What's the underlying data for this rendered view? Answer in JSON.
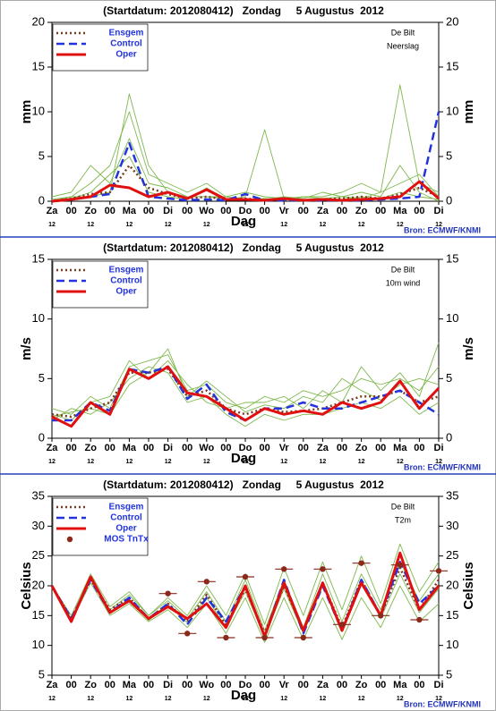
{
  "chart_data": [
    {
      "type": "line",
      "title": "(Startdatum: 2012080412)   Zondag     5 Augustus  2012",
      "location": "De Bilt",
      "variable": "Neerslag",
      "ylabel": "mm",
      "xlabel": "Dag",
      "source": "Bron: ECMWF/KNMI",
      "categories": [
        "Za",
        "00",
        "Zo",
        "00",
        "Ma",
        "00",
        "Di",
        "00",
        "Wo",
        "00",
        "Do",
        "00",
        "Vr",
        "00",
        "Za",
        "00",
        "Zo",
        "00",
        "Ma",
        "00",
        "Di"
      ],
      "x_sublabels": [
        "12",
        null,
        "12",
        null,
        "12",
        null,
        "12",
        null,
        "12",
        null,
        "12",
        null,
        "12",
        null,
        "12",
        null,
        "12",
        null,
        "12",
        null,
        "12"
      ],
      "ylim": [
        0,
        20
      ],
      "yticks": [
        0,
        5,
        10,
        15,
        20
      ],
      "series": [
        {
          "color": "#7fb84f",
          "dash": "thin",
          "values": [
            0,
            0.5,
            2,
            4,
            10,
            3,
            2,
            1,
            2,
            0.5,
            1,
            0.5,
            0.3,
            0.5,
            0.5,
            1,
            2,
            1,
            2,
            3,
            0.5
          ]
        },
        {
          "color": "#7fb84f",
          "dash": "thin",
          "values": [
            0.5,
            1,
            4,
            2,
            7,
            2,
            1.5,
            0.5,
            0.5,
            0.3,
            0.2,
            0.2,
            0.5,
            0.3,
            1,
            0.5,
            1,
            0.5,
            4,
            1,
            0
          ]
        },
        {
          "color": "#7fb84f",
          "dash": "thin",
          "values": [
            0,
            0.3,
            1,
            3,
            5,
            1,
            0.5,
            0.2,
            1.5,
            0.2,
            0.5,
            8,
            0.3,
            0.2,
            0.3,
            0.2,
            0.5,
            0.3,
            1,
            0.5,
            0.2
          ]
        },
        {
          "color": "#7fb84f",
          "dash": "thin",
          "values": [
            0.2,
            0.5,
            0.5,
            1,
            12,
            4,
            1,
            0.5,
            0.5,
            0.5,
            0.2,
            0.3,
            0.2,
            0.5,
            0.3,
            0.5,
            0.3,
            1,
            13,
            2,
            1
          ]
        },
        {
          "name": "Ensgem",
          "color": "#7a3b1e",
          "dash": "dotted",
          "values": [
            0,
            0.3,
            0.8,
            1,
            4,
            1.5,
            0.8,
            0.3,
            0.5,
            0.2,
            0.3,
            0.1,
            0.2,
            0.1,
            0.2,
            0.3,
            0.5,
            0.3,
            0.8,
            1.5,
            0.5
          ]
        },
        {
          "name": "Control",
          "color": "#2233dd",
          "dash": "dashed",
          "values": [
            0,
            0.2,
            0.5,
            0.8,
            6.5,
            0.5,
            0.3,
            0.1,
            0.2,
            0.1,
            0.8,
            0.1,
            0.1,
            0.1,
            0.1,
            0.1,
            0.1,
            0.2,
            0.3,
            0.5,
            10
          ]
        },
        {
          "name": "Oper",
          "color": "#e01010",
          "dash": "solid",
          "values": [
            0,
            0.2,
            0.5,
            1.8,
            1.5,
            0.5,
            1,
            0.3,
            1.3,
            0.2,
            0.2,
            0.1,
            0.3,
            0.1,
            0.2,
            0.1,
            0.2,
            0.3,
            0.5,
            2.2,
            0.3
          ]
        }
      ]
    },
    {
      "type": "line",
      "title": "(Startdatum: 2012080412)   Zondag     5 Augustus  2012",
      "location": "De Bilt",
      "variable": "10m wind",
      "ylabel": "m/s",
      "xlabel": "Dag",
      "source": "Bron: ECMWF/KNMI",
      "categories": [
        "Za",
        "00",
        "Zo",
        "00",
        "Ma",
        "00",
        "Di",
        "00",
        "Wo",
        "00",
        "Do",
        "00",
        "Vr",
        "00",
        "Za",
        "00",
        "Zo",
        "00",
        "Ma",
        "00",
        "Di"
      ],
      "x_sublabels": [
        "12",
        null,
        "12",
        null,
        "12",
        null,
        "12",
        null,
        "12",
        null,
        "12",
        null,
        "12",
        null,
        "12",
        null,
        "12",
        null,
        "12",
        null,
        "12"
      ],
      "ylim": [
        0,
        15
      ],
      "yticks": [
        0,
        5,
        10,
        15
      ],
      "series": [
        {
          "color": "#7fb84f",
          "dash": "thin",
          "values": [
            2.5,
            2,
            3.5,
            2.5,
            6,
            6.5,
            7,
            4,
            4.5,
            3,
            2.5,
            3.5,
            3,
            4,
            3.5,
            4,
            5,
            4.5,
            5,
            4,
            6
          ]
        },
        {
          "color": "#7fb84f",
          "dash": "thin",
          "values": [
            1.5,
            2.5,
            2,
            3,
            5,
            6,
            5.5,
            3,
            3.5,
            2,
            1,
            2,
            1.5,
            2,
            2,
            2.5,
            3,
            2.5,
            3.5,
            2,
            3
          ]
        },
        {
          "color": "#7fb84f",
          "dash": "thin",
          "values": [
            2,
            1.5,
            3,
            3.5,
            6.5,
            5,
            6.5,
            4.5,
            3,
            2.5,
            3,
            3,
            3.5,
            2.5,
            4,
            3,
            6,
            4,
            5.5,
            3.5,
            8
          ]
        },
        {
          "color": "#7fb84f",
          "dash": "thin",
          "values": [
            1.8,
            2.2,
            2.5,
            2,
            4.5,
            5.5,
            7.5,
            3.5,
            4.8,
            3.5,
            2.2,
            2.8,
            2.5,
            3.5,
            3,
            5,
            4,
            3.2,
            4.5,
            5,
            4.5
          ]
        },
        {
          "name": "Ensgem",
          "color": "#7a3b1e",
          "dash": "dotted",
          "values": [
            2,
            1.8,
            2.5,
            3,
            5.5,
            5.5,
            5.8,
            3.5,
            4,
            2.5,
            2,
            2.5,
            2.2,
            2.3,
            2.5,
            3,
            3.5,
            3.5,
            4,
            3,
            3.5
          ]
        },
        {
          "name": "Control",
          "color": "#2233dd",
          "dash": "dashed",
          "values": [
            1.5,
            1.5,
            3,
            2.3,
            5.8,
            5.5,
            6,
            3.3,
            4.5,
            2.2,
            1.5,
            2.5,
            2.5,
            3,
            2.5,
            2.5,
            3,
            3.5,
            4,
            3,
            2
          ]
        },
        {
          "name": "Oper",
          "color": "#e01010",
          "dash": "solid",
          "values": [
            1.8,
            1,
            3,
            2,
            5.8,
            5,
            6,
            3.8,
            3.5,
            2.5,
            1.5,
            2.5,
            2,
            2.3,
            2,
            3,
            2.5,
            3,
            4.8,
            2.5,
            4.2
          ]
        }
      ]
    },
    {
      "type": "line",
      "title": "(Startdatum: 2012080412)   Zondag     5 Augustus  2012",
      "location": "De Bilt",
      "variable": "T2m",
      "ylabel": "Celsius",
      "xlabel": "Dag",
      "source": "Bron: ECMWF/KNMI",
      "categories": [
        "Za",
        "00",
        "Zo",
        "00",
        "Ma",
        "00",
        "Di",
        "00",
        "Wo",
        "00",
        "Do",
        "00",
        "Vr",
        "00",
        "Za",
        "00",
        "Zo",
        "00",
        "Ma",
        "00",
        "Di"
      ],
      "x_sublabels": [
        "12",
        null,
        "12",
        null,
        "12",
        null,
        "12",
        null,
        "12",
        null,
        "12",
        null,
        "12",
        null,
        "12",
        null,
        "12",
        null,
        "12",
        null,
        "12"
      ],
      "ylim": [
        5,
        35
      ],
      "yticks": [
        5,
        10,
        15,
        20,
        25,
        30,
        35
      ],
      "series": [
        {
          "color": "#7fb84f",
          "dash": "thin",
          "values": [
            20,
            15,
            22,
            16.5,
            19,
            15,
            18,
            15,
            20,
            15,
            22,
            13.5,
            23,
            15,
            24,
            16,
            25,
            17,
            27,
            19,
            24
          ]
        },
        {
          "color": "#7fb84f",
          "dash": "thin",
          "values": [
            20,
            14,
            20.5,
            15,
            17,
            14,
            16,
            13,
            17,
            12,
            18,
            10.5,
            18,
            11,
            18,
            11,
            18,
            13,
            20,
            14,
            17
          ]
        },
        {
          "color": "#7fb84f",
          "dash": "thin",
          "values": [
            20,
            14.5,
            21,
            16,
            18.5,
            15,
            17.5,
            14.5,
            19,
            14,
            21,
            12.5,
            21,
            13,
            22,
            14,
            22,
            16,
            24,
            17.5,
            22
          ]
        },
        {
          "color": "#7fb84f",
          "dash": "thin",
          "values": [
            20,
            14.2,
            21.5,
            15.5,
            17.8,
            14.2,
            16.8,
            13.8,
            18,
            13,
            19,
            11.5,
            19.5,
            12,
            20,
            12.5,
            21,
            14.5,
            22,
            15.5,
            19.5
          ]
        },
        {
          "name": "Ensgem",
          "color": "#7a3b1e",
          "dash": "dotted",
          "values": [
            20,
            14.5,
            21,
            16,
            18,
            14.5,
            17,
            14,
            18.5,
            13.5,
            19.5,
            12,
            20,
            12.5,
            20.5,
            13,
            21,
            15,
            23,
            16,
            21
          ]
        },
        {
          "name": "Control",
          "color": "#2233dd",
          "dash": "dashed",
          "values": [
            20,
            14.5,
            21,
            15.5,
            18,
            14.5,
            17,
            13.5,
            18,
            14,
            20,
            11.5,
            21,
            12,
            20,
            12.5,
            21,
            15,
            24,
            17,
            20
          ]
        },
        {
          "name": "Oper",
          "color": "#e01010",
          "dash": "solid",
          "values": [
            20,
            14,
            21.5,
            15.5,
            17.5,
            14.5,
            16.5,
            14.5,
            17,
            13,
            20,
            11.5,
            20.5,
            12.5,
            20.5,
            12.5,
            20.5,
            15,
            25.5,
            16,
            20
          ]
        },
        {
          "name": "MOS TnTx",
          "color": "#8b2a1a",
          "dash": "dot",
          "values": [
            null,
            null,
            null,
            null,
            null,
            null,
            18.7,
            12,
            20.7,
            11.3,
            21.5,
            11.3,
            22.8,
            11.3,
            22.8,
            13.5,
            23.8,
            15,
            23.5,
            14.3,
            22.5
          ]
        }
      ]
    }
  ]
}
